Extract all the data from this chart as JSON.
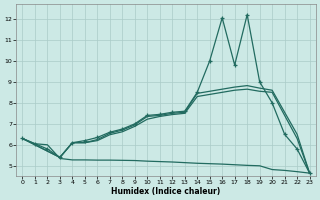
{
  "xlabel": "Humidex (Indice chaleur)",
  "xlim": [
    -0.5,
    23.5
  ],
  "ylim": [
    4.5,
    12.7
  ],
  "xticks": [
    0,
    1,
    2,
    3,
    4,
    5,
    6,
    7,
    8,
    9,
    10,
    11,
    12,
    13,
    14,
    15,
    16,
    17,
    18,
    19,
    20,
    21,
    22,
    23
  ],
  "yticks": [
    5,
    6,
    7,
    8,
    9,
    10,
    11,
    12
  ],
  "bg_color": "#cce9e5",
  "grid_color": "#aaccc8",
  "line_color": "#226b60",
  "line_marked_x": [
    0,
    1,
    2,
    3,
    4,
    5,
    6,
    7,
    8,
    9,
    10,
    11,
    12,
    13,
    14,
    15,
    16,
    17,
    18,
    19,
    20,
    21,
    22,
    23
  ],
  "line_marked_y": [
    6.3,
    6.05,
    5.8,
    5.4,
    6.1,
    6.2,
    6.35,
    6.6,
    6.75,
    7.0,
    7.4,
    7.45,
    7.55,
    7.6,
    8.5,
    10.0,
    12.05,
    9.8,
    12.2,
    9.0,
    8.0,
    6.5,
    5.8,
    4.65
  ],
  "line_upper_x": [
    0,
    3,
    4,
    5,
    6,
    7,
    8,
    9,
    10,
    11,
    12,
    13,
    14,
    15,
    16,
    17,
    18,
    19,
    20,
    22,
    23
  ],
  "line_upper_y": [
    6.3,
    5.4,
    6.1,
    6.1,
    6.25,
    6.55,
    6.7,
    6.95,
    7.35,
    7.4,
    7.5,
    7.55,
    8.45,
    8.55,
    8.65,
    8.75,
    8.82,
    8.7,
    8.6,
    6.5,
    4.65
  ],
  "line_lower_x": [
    0,
    3,
    4,
    5,
    6,
    7,
    8,
    9,
    10,
    11,
    12,
    13,
    14,
    15,
    16,
    17,
    18,
    19,
    20,
    22,
    23
  ],
  "line_lower_y": [
    6.3,
    5.4,
    6.1,
    6.1,
    6.2,
    6.48,
    6.62,
    6.88,
    7.22,
    7.35,
    7.44,
    7.5,
    8.3,
    8.4,
    8.5,
    8.6,
    8.65,
    8.55,
    8.5,
    6.3,
    4.65
  ],
  "line_flat_x": [
    0,
    1,
    2,
    3,
    4,
    5,
    6,
    7,
    8,
    9,
    10,
    11,
    12,
    13,
    14,
    15,
    16,
    17,
    18,
    19,
    20,
    21,
    22,
    23
  ],
  "line_flat_y": [
    6.3,
    6.05,
    6.0,
    5.35,
    5.28,
    5.28,
    5.27,
    5.27,
    5.26,
    5.25,
    5.22,
    5.2,
    5.18,
    5.15,
    5.12,
    5.1,
    5.08,
    5.05,
    5.02,
    5.0,
    4.82,
    4.78,
    4.72,
    4.65
  ]
}
